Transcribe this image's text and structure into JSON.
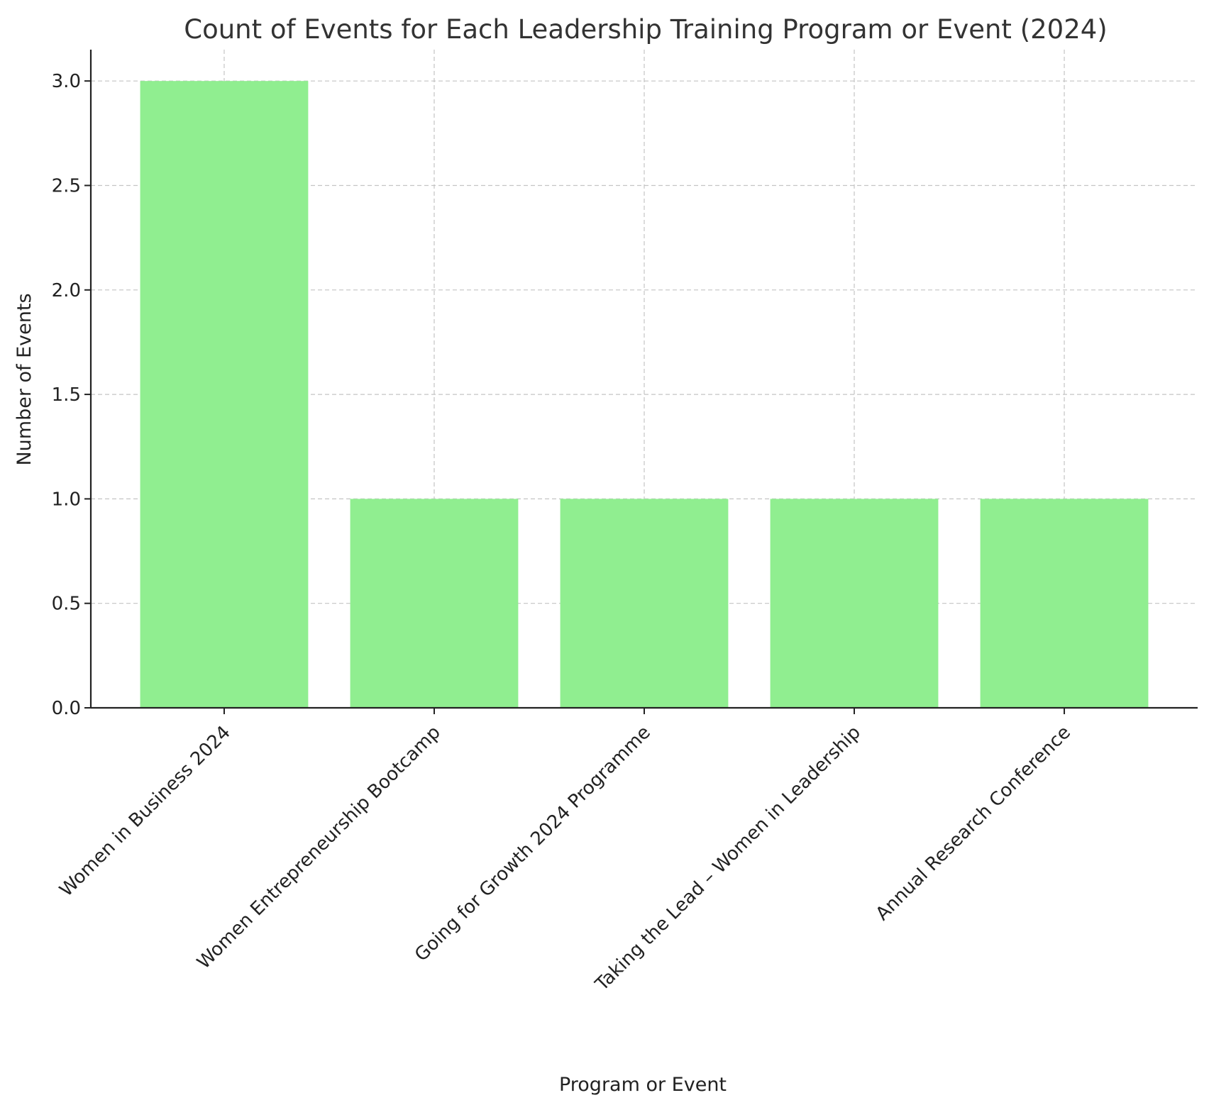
{
  "chart_data": {
    "type": "bar",
    "title": "Count of Events for Each Leadership Training Program or Event (2024)",
    "xlabel": "Program or Event",
    "ylabel": "Number of Events",
    "categories": [
      "Women in Business 2024",
      "Women Entrepreneurship Bootcamp",
      "Going for Growth 2024 Programme",
      "Taking the Lead – Women in Leadership",
      "Annual Research Conference"
    ],
    "values": [
      3,
      1,
      1,
      1,
      1
    ],
    "ylim": [
      0,
      3.15
    ],
    "yticks": [
      "0.0",
      "0.5",
      "1.0",
      "1.5",
      "2.0",
      "2.5",
      "3.0"
    ],
    "grid": true,
    "bar_color": "#90ee90"
  }
}
